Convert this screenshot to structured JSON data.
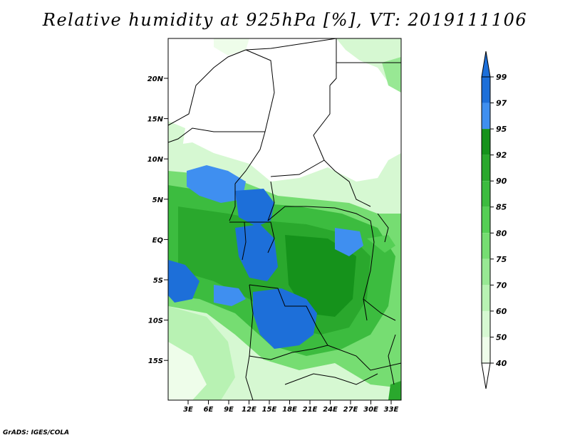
{
  "title": "Relative humidity at 925hPa [%], VT: 2019111106",
  "footer": "GrADS: IGES/COLA",
  "map": {
    "lat_labels": [
      "20N",
      "15N",
      "10N",
      "5N",
      "EQ",
      "5S",
      "10S",
      "15S"
    ],
    "lon_labels": [
      "3E",
      "6E",
      "9E",
      "12E",
      "15E",
      "18E",
      "21E",
      "24E",
      "27E",
      "30E",
      "33E"
    ]
  },
  "colorbar": {
    "levels": [
      "99",
      "97",
      "95",
      "92",
      "90",
      "85",
      "80",
      "75",
      "70",
      "60",
      "50",
      "40"
    ],
    "colors": [
      "#1d6fd9",
      "#3f8ff0",
      "#15921b",
      "#2aa82d",
      "#3cbc3f",
      "#55cf55",
      "#76dd72",
      "#98e894",
      "#b8f2b3",
      "#d6f8d2",
      "#eefdea"
    ]
  }
}
